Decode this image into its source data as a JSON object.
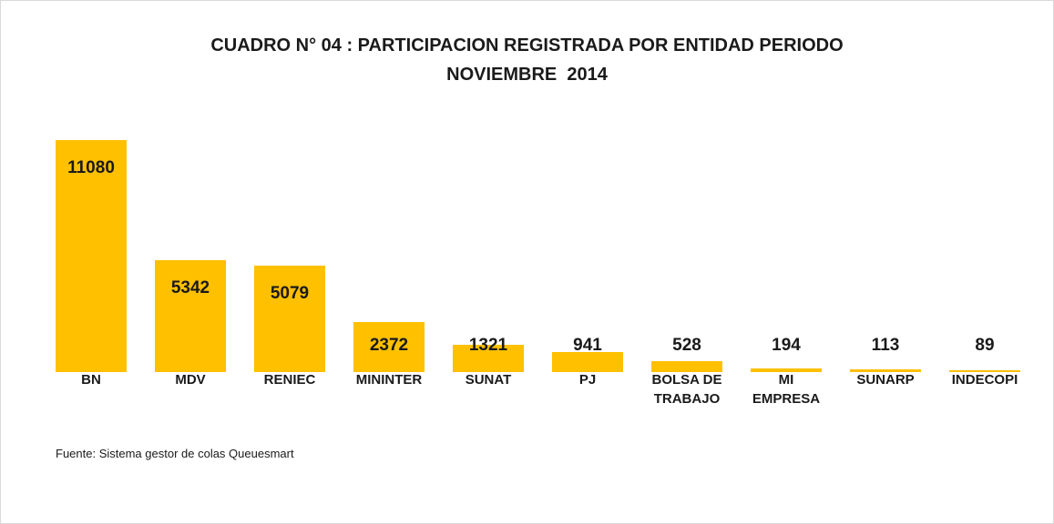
{
  "chart_data": {
    "type": "bar",
    "title": "CUADRO N° 04 : PARTICIPACION REGISTRADA POR ENTIDAD PERIODO",
    "subtitle": "NOVIEMBRE  2014",
    "categories": [
      "BN",
      "MDV",
      "RENIEC",
      "MININTER",
      "SUNAT",
      "PJ",
      "BOLSA DE TRABAJO",
      "MI EMPRESA",
      "SUNARP",
      "INDECOPI"
    ],
    "values": [
      11080,
      5342,
      5079,
      2372,
      1321,
      941,
      528,
      194,
      113,
      89
    ],
    "color": "#ffc000",
    "source": "Fuente: Sistema gestor de colas Queuesmart"
  }
}
